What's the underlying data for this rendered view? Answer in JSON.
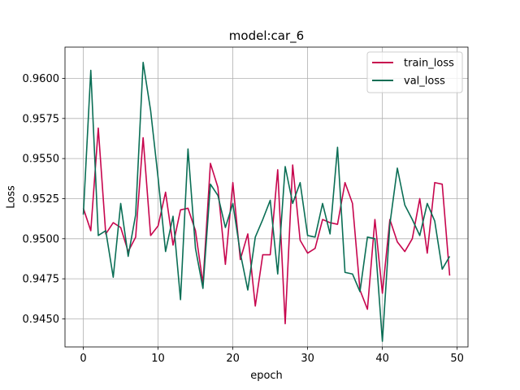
{
  "chart_data": {
    "type": "line",
    "title": "model:car_6",
    "xlabel": "epoch",
    "ylabel": "Loss",
    "xlim": [
      -2.45,
      51.45
    ],
    "ylim": [
      0.94325,
      0.96195
    ],
    "xticks": [
      0,
      10,
      20,
      30,
      40,
      50
    ],
    "yticks": [
      0.945,
      0.9475,
      0.95,
      0.9525,
      0.955,
      0.9575,
      0.96
    ],
    "ytick_labels": [
      "0.9450",
      "0.9475",
      "0.9500",
      "0.9525",
      "0.9550",
      "0.9575",
      "0.9600"
    ],
    "grid": true,
    "legend_position": "top-right",
    "x": [
      0,
      1,
      2,
      3,
      4,
      5,
      6,
      7,
      8,
      9,
      10,
      11,
      12,
      13,
      14,
      15,
      16,
      17,
      18,
      19,
      20,
      21,
      22,
      23,
      24,
      25,
      26,
      27,
      28,
      29,
      30,
      31,
      32,
      33,
      34,
      35,
      36,
      37,
      38,
      39,
      40,
      41,
      42,
      43,
      44,
      45,
      46,
      47,
      48,
      49
    ],
    "series": [
      {
        "name": "train_loss",
        "color": "#c7064e",
        "values": [
          0.9519,
          0.9505,
          0.9569,
          0.9503,
          0.951,
          0.9507,
          0.9492,
          0.9501,
          0.9563,
          0.9502,
          0.9508,
          0.9529,
          0.9496,
          0.9518,
          0.9519,
          0.9505,
          0.9472,
          0.9547,
          0.9532,
          0.9484,
          0.9535,
          0.9487,
          0.9503,
          0.9458,
          0.949,
          0.949,
          0.9543,
          0.9447,
          0.9546,
          0.9499,
          0.9491,
          0.9494,
          0.9512,
          0.951,
          0.9509,
          0.9535,
          0.9522,
          0.9468,
          0.9456,
          0.9512,
          0.9466,
          0.9512,
          0.9498,
          0.9492,
          0.95,
          0.9525,
          0.9491,
          0.9535,
          0.9534,
          0.9477
        ]
      },
      {
        "name": "val_loss",
        "color": "#0a6e55",
        "values": [
          0.9515,
          0.9605,
          0.9502,
          0.9505,
          0.9476,
          0.9522,
          0.9489,
          0.9515,
          0.961,
          0.958,
          0.9538,
          0.9492,
          0.9514,
          0.9462,
          0.9556,
          0.9494,
          0.9469,
          0.9534,
          0.9527,
          0.9507,
          0.9522,
          0.9491,
          0.9468,
          0.9501,
          0.9512,
          0.9524,
          0.9478,
          0.9545,
          0.9522,
          0.9535,
          0.9502,
          0.9501,
          0.9522,
          0.9503,
          0.9557,
          0.9479,
          0.9478,
          0.9467,
          0.9501,
          0.95,
          0.9436,
          0.9509,
          0.9544,
          0.9521,
          0.9512,
          0.9502,
          0.9522,
          0.9511,
          0.9481,
          0.9489
        ]
      }
    ]
  }
}
